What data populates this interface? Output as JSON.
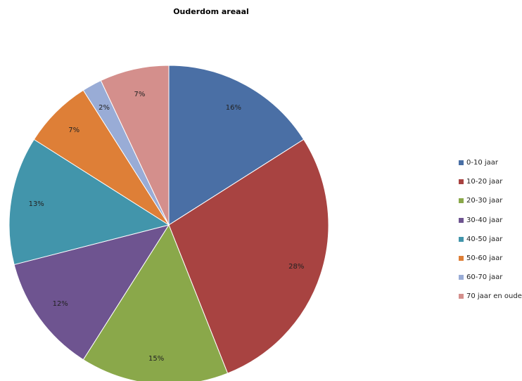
{
  "chart_data": {
    "type": "pie",
    "title": "Ouderdom areaal",
    "categories": [
      "0-10 jaar",
      "10-20 jaar",
      "20-30 jaar",
      "30-40 jaar",
      "40-50 jaar",
      "50-60 jaar",
      "60-70 jaar",
      "70 jaar en ouder"
    ],
    "values": [
      16,
      28,
      15,
      12,
      13,
      7,
      2,
      7
    ],
    "labels": [
      "16%",
      "28%",
      "15%",
      "12%",
      "13%",
      "7%",
      "2%",
      "7%"
    ],
    "colors": [
      "#4a6fa5",
      "#a84341",
      "#8aa84a",
      "#6e5490",
      "#4295ab",
      "#de7f37",
      "#99acd6",
      "#d48f8c"
    ],
    "legend_position": "right"
  }
}
